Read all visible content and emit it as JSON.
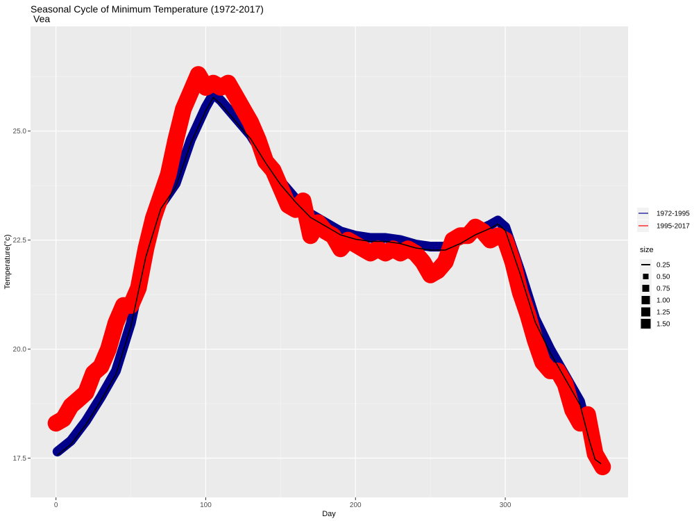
{
  "chart_data": {
    "type": "line",
    "title": "Seasonal Cycle of Minimum Temperature (1972-2017)",
    "subtitle": "Vea",
    "xlabel": "Day",
    "ylabel": "Temperature(°c)",
    "xlim": [
      -17,
      382
    ],
    "ylim": [
      16.6,
      27.4
    ],
    "x_ticks": [
      0,
      100,
      200,
      300
    ],
    "x_tick_labels": [
      "0",
      "100",
      "200",
      "300"
    ],
    "y_ticks": [
      17.5,
      20.0,
      22.5,
      25.0
    ],
    "y_tick_labels": [
      "17.5",
      "20.0",
      "22.5",
      "25.0"
    ],
    "grid": true,
    "background": "#ebebeb",
    "colour_legend": {
      "position": "right",
      "entries": [
        {
          "label": "1972-1995",
          "color": "#00008b"
        },
        {
          "label": "1995-2017",
          "color": "#ff0000"
        }
      ]
    },
    "size_legend": {
      "title": "size",
      "labels": [
        "0.25",
        "0.50",
        "0.75",
        "1.00",
        "1.25",
        "1.50"
      ]
    },
    "series": [
      {
        "name": "1972-1995",
        "color": "#00008b",
        "x": [
          1,
          10,
          20,
          30,
          40,
          50,
          60,
          70,
          80,
          90,
          100,
          105,
          110,
          120,
          130,
          140,
          150,
          160,
          170,
          180,
          190,
          200,
          210,
          220,
          230,
          240,
          250,
          260,
          270,
          280,
          290,
          295,
          300,
          310,
          320,
          330,
          340,
          350,
          356,
          360,
          364
        ],
        "y": [
          17.65,
          17.9,
          18.35,
          18.9,
          19.5,
          20.6,
          22.2,
          23.3,
          23.8,
          24.8,
          25.55,
          25.85,
          25.7,
          25.3,
          24.9,
          24.35,
          23.85,
          23.45,
          23.1,
          22.9,
          22.7,
          22.6,
          22.55,
          22.55,
          22.5,
          22.4,
          22.35,
          22.35,
          22.5,
          22.7,
          22.85,
          22.95,
          22.8,
          21.8,
          20.7,
          20.0,
          19.4,
          18.8,
          18.0,
          17.55,
          17.45
        ]
      },
      {
        "name": "1995-2017",
        "color": "#ff0000",
        "x": [
          0,
          5,
          10,
          15,
          20,
          25,
          30,
          35,
          40,
          45,
          50,
          55,
          60,
          65,
          70,
          75,
          80,
          85,
          90,
          95,
          100,
          105,
          110,
          115,
          120,
          125,
          130,
          135,
          140,
          145,
          150,
          155,
          160,
          165,
          170,
          175,
          180,
          185,
          190,
          195,
          200,
          205,
          210,
          215,
          220,
          225,
          230,
          235,
          240,
          245,
          250,
          255,
          260,
          265,
          270,
          275,
          280,
          285,
          290,
          295,
          300,
          305,
          310,
          315,
          320,
          325,
          330,
          335,
          340,
          345,
          350,
          355,
          360,
          365
        ],
        "y": [
          18.3,
          18.4,
          18.7,
          18.85,
          19.0,
          19.45,
          19.6,
          20.0,
          20.6,
          21.0,
          21.0,
          21.4,
          22.3,
          23.0,
          23.5,
          24.0,
          24.8,
          25.5,
          25.9,
          26.3,
          26.0,
          26.1,
          26.0,
          26.1,
          25.8,
          25.5,
          25.2,
          24.8,
          24.3,
          24.1,
          23.7,
          23.3,
          23.2,
          23.4,
          22.6,
          22.9,
          22.7,
          22.6,
          22.3,
          22.5,
          22.4,
          22.3,
          22.2,
          22.3,
          22.2,
          22.3,
          22.2,
          22.3,
          22.2,
          22.0,
          21.7,
          21.8,
          22.0,
          22.5,
          22.6,
          22.6,
          22.8,
          22.7,
          22.5,
          22.6,
          22.5,
          22.0,
          21.3,
          20.8,
          20.2,
          19.7,
          19.5,
          19.5,
          19.2,
          18.6,
          18.3,
          18.5,
          17.6,
          17.3
        ]
      }
    ]
  }
}
